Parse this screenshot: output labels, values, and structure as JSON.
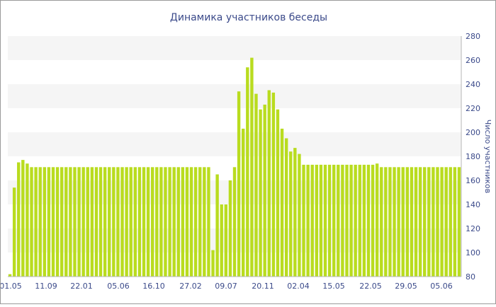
{
  "chart_data": {
    "type": "bar",
    "title": "Динамика участников беседы",
    "xlabel": "",
    "ylabel": "Число участников",
    "ylim": [
      80,
      280
    ],
    "y_ticks": [
      80,
      100,
      120,
      140,
      160,
      180,
      200,
      220,
      240,
      260,
      280
    ],
    "x_tick_labels": [
      "01.05",
      "11.09",
      "22.01",
      "05.06",
      "16.10",
      "27.02",
      "09.07",
      "20.11",
      "02.04",
      "15.05",
      "22.05",
      "29.05",
      "05.06"
    ],
    "grid": "horizontal alternating bands",
    "axis_side": "right",
    "bar_color": "#b9dc1f",
    "values": [
      82,
      154,
      175,
      177,
      174,
      171,
      171,
      171,
      171,
      171,
      171,
      171,
      171,
      171,
      171,
      171,
      171,
      171,
      171,
      171,
      171,
      171,
      171,
      171,
      171,
      171,
      171,
      171,
      171,
      171,
      171,
      171,
      171,
      171,
      171,
      171,
      171,
      171,
      171,
      171,
      171,
      171,
      171,
      171,
      171,
      171,
      171,
      102,
      165,
      140,
      140,
      160,
      171,
      234,
      203,
      254,
      262,
      232,
      219,
      223,
      235,
      233,
      219,
      203,
      195,
      184,
      187,
      182,
      173,
      173,
      173,
      173,
      173,
      173,
      173,
      173,
      173,
      173,
      173,
      173,
      173,
      173,
      173,
      173,
      173,
      174,
      171,
      171,
      171,
      171,
      171,
      171,
      171,
      171,
      171,
      171,
      171,
      171,
      171,
      171,
      171,
      171,
      171,
      171,
      171
    ]
  }
}
